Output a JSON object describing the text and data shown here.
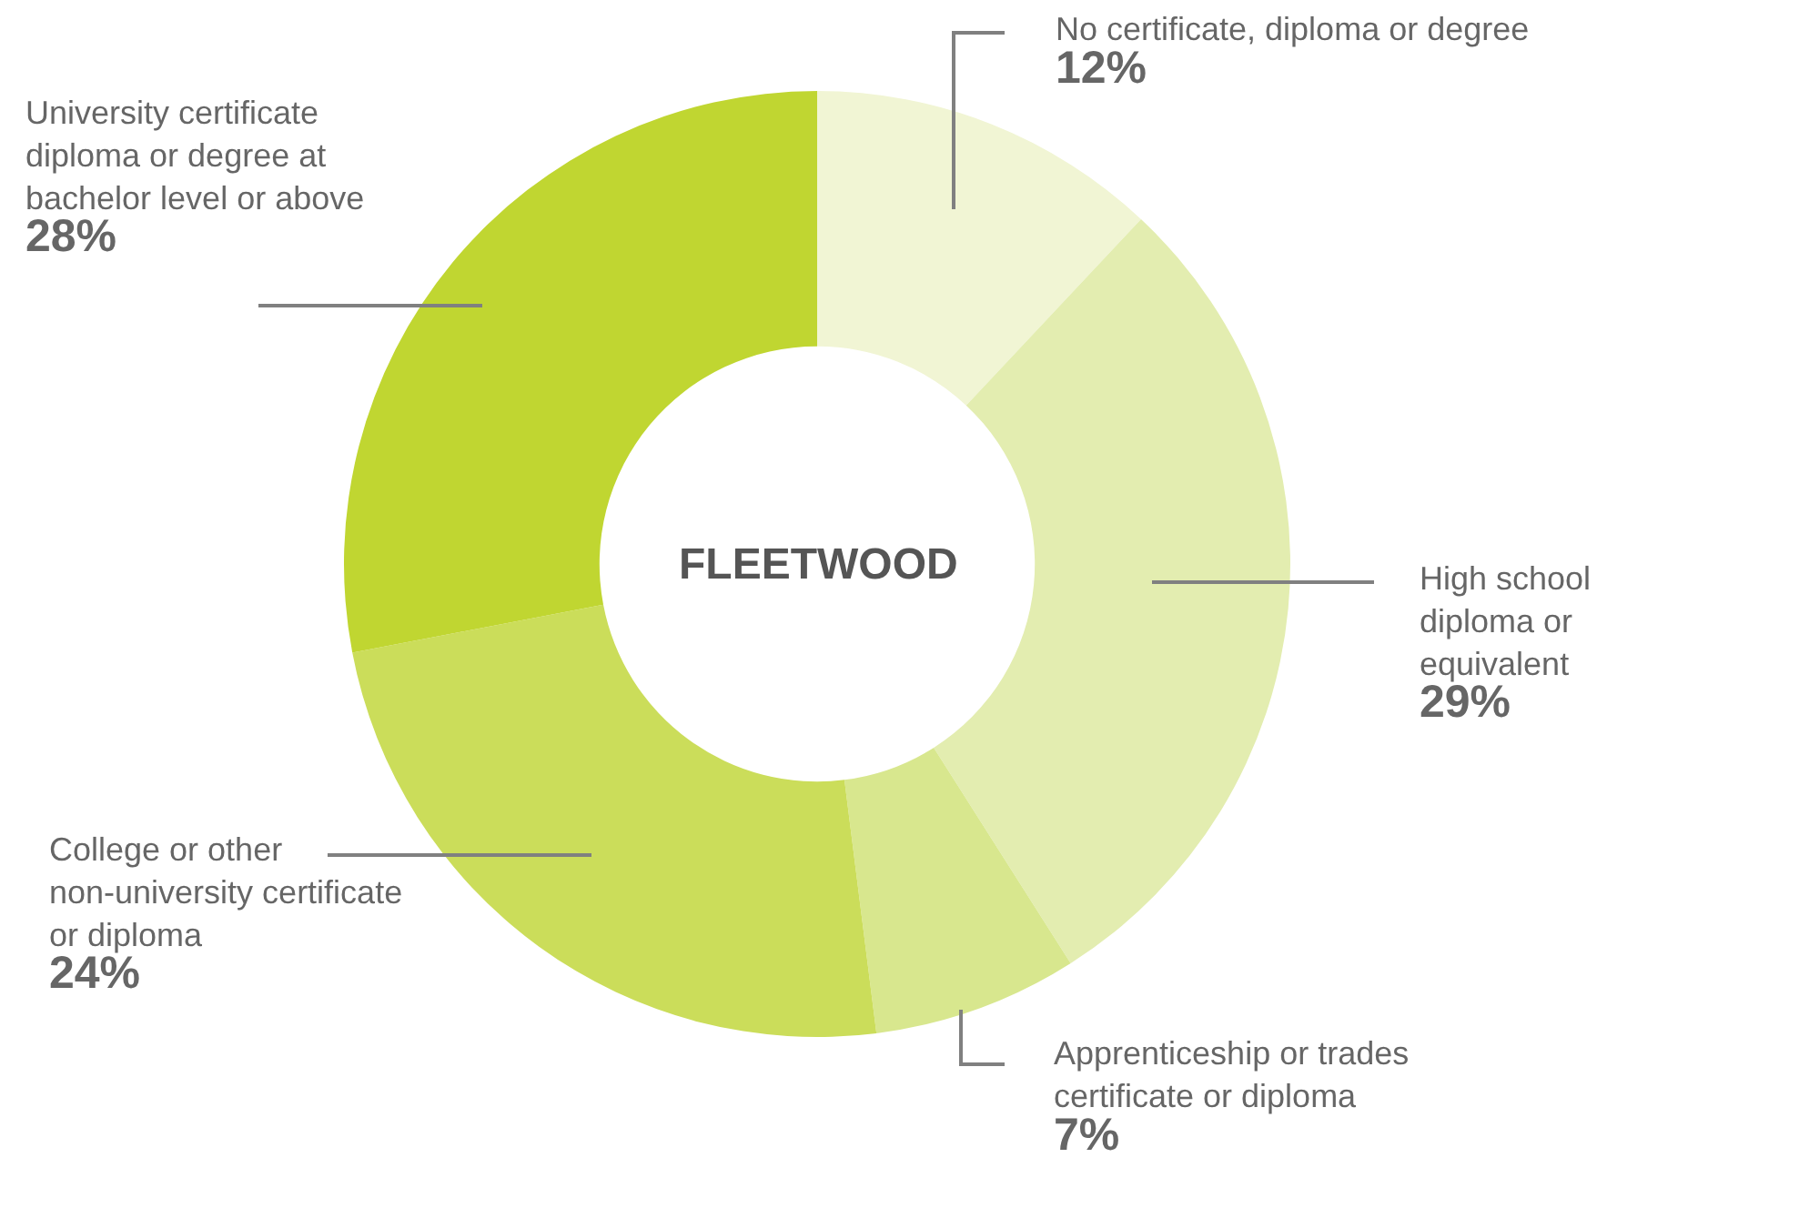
{
  "chart_data": {
    "type": "donut",
    "title": "FLEETWOOD",
    "categories": [
      "No certificate, diploma or degree",
      "High school diploma or equivalent",
      "Apprenticeship or trades certificate or diploma",
      "College or other non-university certificate or diploma",
      "University certificate diploma or degree at bachelor level or above"
    ],
    "values": [
      12,
      29,
      7,
      24,
      28
    ],
    "value_labels": [
      "12%",
      "29%",
      "7%",
      "24%",
      "28%"
    ],
    "colors": [
      "#f1f5d4",
      "#e3edb0",
      "#d8e78e",
      "#cbdd5a",
      "#c0d631"
    ],
    "legend": false
  }
}
